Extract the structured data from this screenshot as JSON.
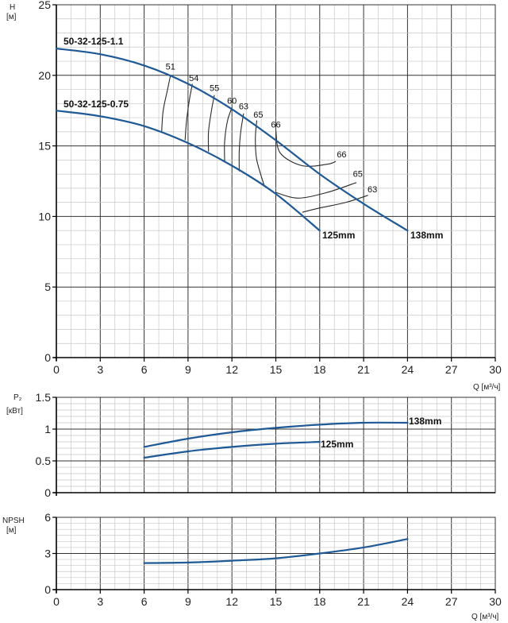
{
  "colors": {
    "curve": "#1f5a96",
    "eff": "#2a2a2a",
    "grid_major": "#333333",
    "grid_minor": "#c8c8c8"
  },
  "chart_data": [
    {
      "type": "line",
      "name": "head",
      "ylabel": "H",
      "yunit": "[м]",
      "xlabel": "Q [м³/ч]",
      "xlim": [
        0,
        30
      ],
      "ylim": [
        0,
        25
      ],
      "xticks": [
        "0",
        "3",
        "6",
        "9",
        "12",
        "15",
        "18",
        "21",
        "24",
        "27",
        "30"
      ],
      "yticks": [
        "0",
        "5",
        "10",
        "15",
        "20",
        "25"
      ],
      "grid": true,
      "series": [
        {
          "name": "50-32-125-1.1",
          "x": [
            0,
            3,
            6,
            9,
            12,
            15,
            18,
            21,
            24
          ],
          "y": [
            21.9,
            21.5,
            20.7,
            19.4,
            17.6,
            15.4,
            13.0,
            10.9,
            9.0
          ],
          "end_label": "138mm"
        },
        {
          "name": "50-32-125-0.75",
          "x": [
            0,
            3,
            6,
            9,
            12,
            15,
            18
          ],
          "y": [
            17.5,
            17.1,
            16.4,
            15.2,
            13.6,
            11.6,
            9.0
          ],
          "end_label": "125mm"
        }
      ],
      "efficiency_curves": [
        {
          "label": "51",
          "x": [
            7.2,
            7.3,
            7.6,
            7.8
          ],
          "y": [
            16.0,
            17.5,
            19.0,
            20.0
          ]
        },
        {
          "label": "54",
          "x": [
            8.8,
            8.9,
            9.1,
            9.3
          ],
          "y": [
            15.4,
            16.8,
            18.3,
            19.4
          ]
        },
        {
          "label": "55",
          "x": [
            10.4,
            10.4,
            10.6,
            10.8
          ],
          "y": [
            14.6,
            16.0,
            17.5,
            18.6
          ]
        },
        {
          "label": "60",
          "x": [
            11.5,
            11.5,
            11.7,
            12.0
          ],
          "y": [
            13.9,
            15.3,
            16.8,
            17.7
          ]
        },
        {
          "label": "63",
          "x": [
            12.5,
            12.5,
            12.6,
            12.8
          ],
          "y": [
            13.2,
            14.6,
            16.0,
            17.3
          ]
        },
        {
          "label": "65",
          "x": [
            14.2,
            13.7,
            13.6,
            13.7
          ],
          "y": [
            12.2,
            14.0,
            15.5,
            16.8
          ]
        },
        {
          "label": "66",
          "x": [
            15.0,
            15.3,
            16.8,
            18.5,
            19.1
          ],
          "y": [
            16.1,
            14.5,
            13.6,
            13.7,
            13.9
          ]
        },
        {
          "label": "65",
          "x": [
            15.0,
            16.5,
            18.5,
            20.5
          ],
          "y": [
            11.7,
            11.3,
            11.7,
            12.4
          ]
        },
        {
          "label": "63",
          "x": [
            16.8,
            18.0,
            19.8,
            21.3
          ],
          "y": [
            10.3,
            10.6,
            11.0,
            11.5
          ]
        }
      ],
      "efficiency_label_positions": [
        {
          "label": "51",
          "x": 7.8,
          "y": 20.4
        },
        {
          "label": "54",
          "x": 9.4,
          "y": 19.6
        },
        {
          "label": "55",
          "x": 10.8,
          "y": 18.9
        },
        {
          "label": "60",
          "x": 12.0,
          "y": 18.0
        },
        {
          "label": "63",
          "x": 12.8,
          "y": 17.6
        },
        {
          "label": "65",
          "x": 13.8,
          "y": 17.0
        },
        {
          "label": "66",
          "x": 15.0,
          "y": 16.3
        },
        {
          "label": "66",
          "x": 19.5,
          "y": 14.2
        },
        {
          "label": "65",
          "x": 20.6,
          "y": 12.8
        },
        {
          "label": "63",
          "x": 21.6,
          "y": 11.7
        }
      ]
    },
    {
      "type": "line",
      "name": "power",
      "ylabel": "P₂",
      "yunit": "[кВт]",
      "xlim": [
        0,
        30
      ],
      "ylim": [
        0,
        1.5
      ],
      "yticks": [
        "0",
        "0.5",
        "1",
        "1.5"
      ],
      "grid": true,
      "series": [
        {
          "name": "138mm",
          "x": [
            6,
            9,
            12,
            15,
            18,
            21,
            24
          ],
          "y": [
            0.72,
            0.85,
            0.95,
            1.02,
            1.07,
            1.1,
            1.1
          ],
          "end_label": "138mm"
        },
        {
          "name": "125mm",
          "x": [
            6,
            9,
            12,
            15,
            18
          ],
          "y": [
            0.55,
            0.65,
            0.72,
            0.77,
            0.8
          ],
          "end_label": "125mm"
        }
      ]
    },
    {
      "type": "line",
      "name": "npsh",
      "ylabel": "NPSH",
      "yunit": "[м]",
      "xlabel": "Q [м³/ч]",
      "xlim": [
        0,
        30
      ],
      "ylim": [
        0,
        6
      ],
      "xticks": [
        "0",
        "3",
        "6",
        "9",
        "12",
        "15",
        "18",
        "21",
        "24",
        "27",
        "30"
      ],
      "yticks": [
        "0",
        "3",
        "6"
      ],
      "grid": true,
      "series": [
        {
          "name": "",
          "x": [
            6,
            9,
            12,
            15,
            18,
            21,
            24
          ],
          "y": [
            2.2,
            2.25,
            2.4,
            2.6,
            3.0,
            3.5,
            4.2
          ]
        }
      ]
    }
  ]
}
